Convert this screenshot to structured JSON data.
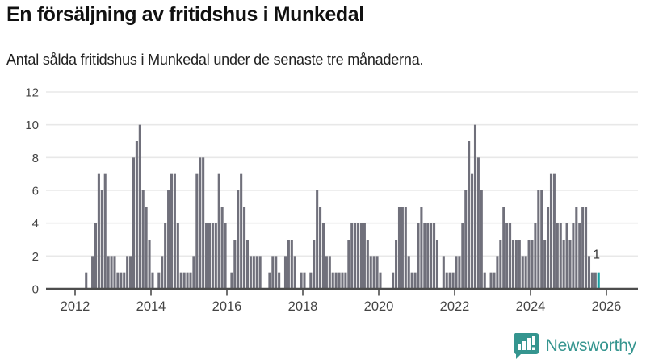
{
  "header": {
    "title": "En försäljning av fritidshus i Munkedal",
    "subtitle": "Antal sålda fritidshus i Munkedal under de senaste tre månaderna."
  },
  "chart_data": {
    "type": "bar",
    "title": "En försäljning av fritidshus i Munkedal",
    "ylabel": "",
    "xlabel": "",
    "ylim": [
      0,
      12
    ],
    "y_ticks": [
      0,
      2,
      4,
      6,
      8,
      10,
      12
    ],
    "x_tick_labels": [
      "2012",
      "2014",
      "2016",
      "2018",
      "2020",
      "2022",
      "2024",
      "2026"
    ],
    "grid": true,
    "series_start": "2012-01",
    "frequency": "monthly",
    "values": [
      0,
      0,
      0,
      1,
      0,
      2,
      4,
      7,
      6,
      7,
      2,
      2,
      2,
      1,
      1,
      1,
      2,
      2,
      8,
      9,
      10,
      6,
      5,
      3,
      1,
      0,
      1,
      2,
      4,
      6,
      7,
      7,
      4,
      1,
      1,
      1,
      1,
      2,
      7,
      8,
      8,
      4,
      4,
      4,
      4,
      7,
      5,
      4,
      0,
      1,
      3,
      6,
      7,
      5,
      3,
      2,
      2,
      2,
      2,
      0,
      0,
      1,
      2,
      2,
      1,
      0,
      2,
      3,
      3,
      2,
      0,
      1,
      1,
      0,
      1,
      3,
      6,
      5,
      4,
      2,
      2,
      1,
      1,
      1,
      1,
      1,
      3,
      4,
      4,
      4,
      4,
      4,
      3,
      2,
      2,
      2,
      1,
      0,
      0,
      0,
      1,
      3,
      5,
      5,
      5,
      2,
      1,
      1,
      4,
      5,
      4,
      4,
      4,
      4,
      3,
      0,
      2,
      1,
      1,
      1,
      2,
      2,
      4,
      6,
      9,
      7,
      10,
      8,
      6,
      1,
      0,
      1,
      1,
      2,
      3,
      5,
      4,
      4,
      3,
      3,
      3,
      2,
      2,
      3,
      3,
      4,
      6,
      6,
      3,
      5,
      7,
      7,
      4,
      4,
      3,
      4,
      3,
      4,
      5,
      4,
      5,
      5,
      2,
      1,
      1,
      1
    ],
    "highlight_last": true,
    "last_value_label": "1",
    "bar_color": "#70707b",
    "highlight_color": "#16a2a4",
    "grid_color": "#e8e8e8",
    "axis_color": "#4d4d4d",
    "tick_label_color": "#444444"
  },
  "branding": {
    "logo_text": "Newsworthy",
    "logo_color": "#35958f"
  }
}
